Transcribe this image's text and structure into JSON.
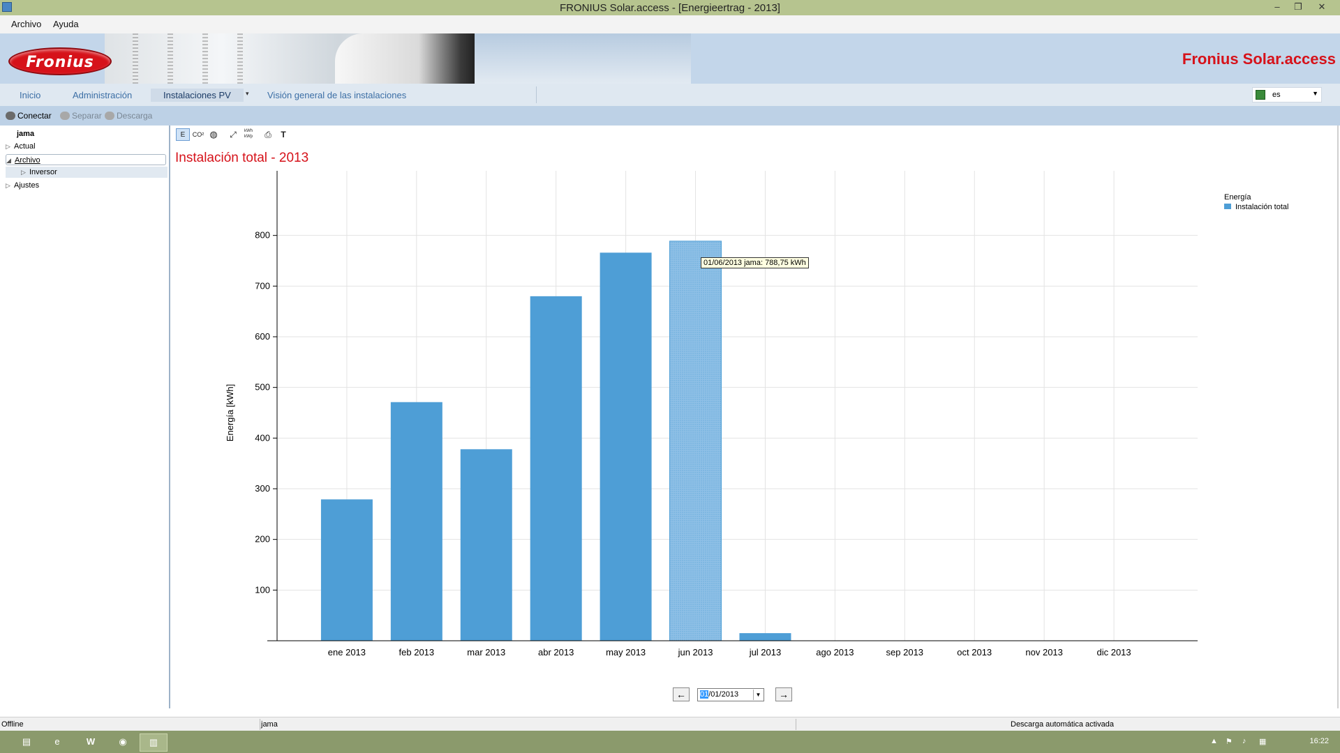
{
  "window": {
    "title": "FRONIUS Solar.access - [Energieertrag - 2013]"
  },
  "menu": {
    "archivo": "Archivo",
    "ayuda": "Ayuda"
  },
  "banner": {
    "logo_text": "Fronius",
    "brand": "Fronius Solar.access"
  },
  "nav": {
    "inicio": "Inicio",
    "administracion": "Administración",
    "instalaciones": "Instalaciones PV",
    "vision": "Visión general de las instalaciones",
    "language": "es"
  },
  "toolbar": {
    "conectar": "Conectar",
    "separar": "Separar",
    "descarga": "Descarga"
  },
  "tree": {
    "root": "jama",
    "actual": "Actual",
    "archivo": "Archivo",
    "inversor": "Inversor",
    "ajustes": "Ajustes"
  },
  "chart_tools": {
    "energy": "E",
    "co2": "CO²",
    "text": "T",
    "kwp": "kWh kWp"
  },
  "content": {
    "title": "Instalación total - 2013",
    "tooltip": "01/06/2013 jama: 788,75 kWh",
    "date_value_selected": "01",
    "date_value_rest": "/01/2013"
  },
  "legend": {
    "heading": "Energía",
    "entry": "Instalación total"
  },
  "statusbar": {
    "connection": "Offline",
    "installation": "jama",
    "download": "Descarga automática activada"
  },
  "taskbar": {
    "clock": "16:22"
  },
  "colors": {
    "bar": "#4e9ed6",
    "accent_red": "#d6121a"
  },
  "chart_data": {
    "type": "bar",
    "title": "Instalación total - 2013",
    "xlabel": "",
    "ylabel": "Energía [kWh]",
    "ylim": [
      0,
      900
    ],
    "yticks": [
      100,
      200,
      300,
      400,
      500,
      600,
      700,
      800
    ],
    "grid": true,
    "legend_position": "top-right",
    "highlighted_category": "jun 2013",
    "categories": [
      "ene 2013",
      "feb 2013",
      "mar 2013",
      "abr 2013",
      "may 2013",
      "jun 2013",
      "jul 2013",
      "ago 2013",
      "sep 2013",
      "oct 2013",
      "nov 2013",
      "dic 2013"
    ],
    "series": [
      {
        "name": "Instalación total",
        "values": [
          279,
          471,
          378,
          680,
          766,
          788.75,
          15,
          0,
          0,
          0,
          0,
          0
        ]
      }
    ]
  }
}
